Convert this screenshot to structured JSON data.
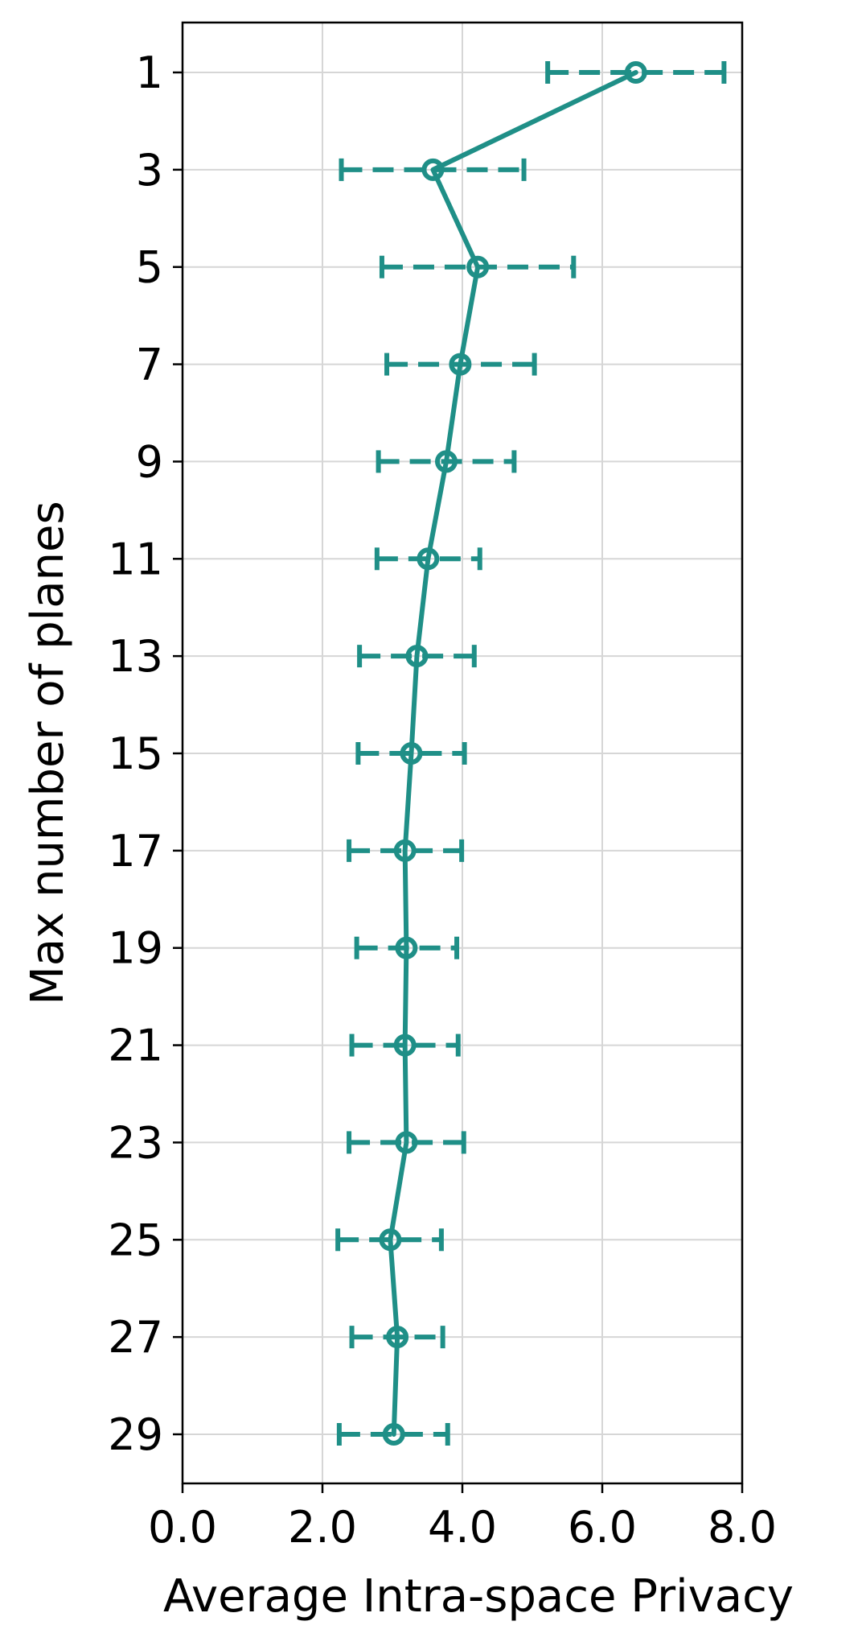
{
  "chart_data": {
    "type": "line",
    "orientation": "horizontal-values",
    "xlabel": "Average Intra-space Privacy",
    "ylabel": "Max number of planes",
    "xlim": [
      0.0,
      8.0
    ],
    "xticks": [
      "0.0",
      "2.0",
      "4.0",
      "6.0",
      "8.0"
    ],
    "yticks": [
      "1",
      "3",
      "5",
      "7",
      "9",
      "11",
      "13",
      "15",
      "17",
      "19",
      "21",
      "23",
      "25",
      "27",
      "29"
    ],
    "y_inverted": true,
    "grid": true,
    "color": "#1f8f87",
    "series": [
      {
        "y": [
          1,
          3,
          5,
          7,
          9,
          11,
          13,
          15,
          17,
          19,
          21,
          23,
          25,
          27,
          29
        ],
        "x": [
          6.48,
          3.58,
          4.22,
          3.97,
          3.77,
          3.51,
          3.35,
          3.27,
          3.18,
          3.2,
          3.18,
          3.2,
          2.97,
          3.07,
          3.02
        ],
        "xerr_low": [
          5.22,
          2.27,
          2.85,
          2.92,
          2.8,
          2.78,
          2.53,
          2.51,
          2.38,
          2.49,
          2.42,
          2.38,
          2.22,
          2.42,
          2.24
        ],
        "xerr_high": [
          7.74,
          4.88,
          5.59,
          5.03,
          4.74,
          4.25,
          4.17,
          4.03,
          3.99,
          3.92,
          3.94,
          4.02,
          3.7,
          3.72,
          3.79
        ]
      }
    ]
  }
}
